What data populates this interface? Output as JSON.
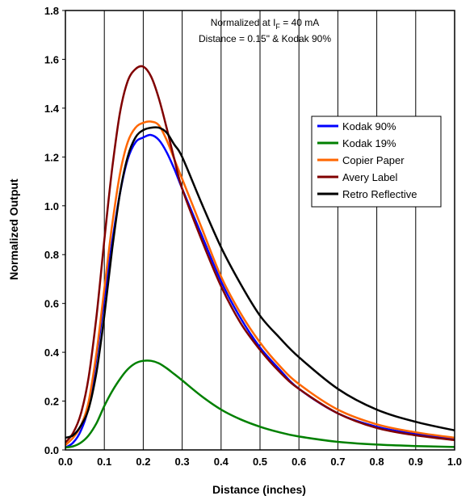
{
  "chart_data": {
    "type": "line",
    "title": "",
    "xlabel": "Distance (inches)",
    "ylabel": "Normalized Output",
    "xlim": [
      0,
      1.0
    ],
    "ylim": [
      0,
      1.8
    ],
    "xticks": [
      "0.0",
      "0.1",
      "0.2",
      "0.3",
      "0.4",
      "0.5",
      "0.6",
      "0.7",
      "0.8",
      "0.9",
      "1.0"
    ],
    "yticks": [
      "0.0",
      "0.2",
      "0.4",
      "0.6",
      "0.8",
      "1.0",
      "1.2",
      "1.4",
      "1.6",
      "1.8"
    ],
    "grid": "vertical",
    "legend_position": "right",
    "annotation": {
      "line1_prefix": "Normalized at I",
      "line1_sub": "F",
      "line1_suffix": " = 40 mA",
      "line2": "Distance = 0.15\" & Kodak 90%"
    },
    "series": [
      {
        "name": "Kodak 90%",
        "color": "#0000ff",
        "x": [
          0,
          0.02,
          0.04,
          0.06,
          0.08,
          0.1,
          0.12,
          0.14,
          0.16,
          0.18,
          0.2,
          0.22,
          0.24,
          0.26,
          0.28,
          0.3,
          0.35,
          0.4,
          0.45,
          0.5,
          0.55,
          0.6,
          0.7,
          0.8,
          0.9,
          1.0
        ],
        "y": [
          0.01,
          0.03,
          0.08,
          0.18,
          0.38,
          0.62,
          0.85,
          1.05,
          1.19,
          1.26,
          1.28,
          1.29,
          1.27,
          1.22,
          1.15,
          1.07,
          0.88,
          0.69,
          0.54,
          0.42,
          0.33,
          0.25,
          0.15,
          0.095,
          0.065,
          0.045
        ]
      },
      {
        "name": "Kodak 19%",
        "color": "#008000",
        "x": [
          0,
          0.02,
          0.04,
          0.06,
          0.08,
          0.1,
          0.12,
          0.14,
          0.16,
          0.18,
          0.2,
          0.22,
          0.24,
          0.26,
          0.28,
          0.3,
          0.35,
          0.4,
          0.45,
          0.5,
          0.55,
          0.6,
          0.7,
          0.8,
          0.9,
          1.0
        ],
        "y": [
          0.01,
          0.015,
          0.03,
          0.06,
          0.11,
          0.18,
          0.24,
          0.29,
          0.33,
          0.355,
          0.365,
          0.365,
          0.355,
          0.335,
          0.31,
          0.285,
          0.22,
          0.165,
          0.125,
          0.095,
          0.072,
          0.055,
          0.033,
          0.022,
          0.016,
          0.012
        ]
      },
      {
        "name": "Copier Paper",
        "color": "#ff6600",
        "x": [
          0,
          0.02,
          0.04,
          0.06,
          0.08,
          0.1,
          0.12,
          0.14,
          0.16,
          0.18,
          0.2,
          0.22,
          0.24,
          0.26,
          0.28,
          0.3,
          0.35,
          0.4,
          0.45,
          0.5,
          0.55,
          0.6,
          0.7,
          0.8,
          0.9,
          1.0
        ],
        "y": [
          0.02,
          0.05,
          0.1,
          0.2,
          0.4,
          0.66,
          0.92,
          1.13,
          1.26,
          1.32,
          1.34,
          1.345,
          1.33,
          1.27,
          1.19,
          1.11,
          0.91,
          0.71,
          0.56,
          0.44,
          0.345,
          0.27,
          0.165,
          0.105,
          0.072,
          0.05
        ]
      },
      {
        "name": "Avery Label",
        "color": "#800000",
        "x": [
          0,
          0.02,
          0.04,
          0.06,
          0.08,
          0.1,
          0.12,
          0.14,
          0.16,
          0.18,
          0.2,
          0.22,
          0.24,
          0.26,
          0.28,
          0.3,
          0.35,
          0.4,
          0.45,
          0.5,
          0.55,
          0.6,
          0.7,
          0.8,
          0.9,
          1.0
        ],
        "y": [
          0.03,
          0.07,
          0.15,
          0.3,
          0.55,
          0.86,
          1.15,
          1.38,
          1.51,
          1.56,
          1.57,
          1.53,
          1.44,
          1.32,
          1.19,
          1.07,
          0.86,
          0.67,
          0.52,
          0.41,
          0.32,
          0.25,
          0.15,
          0.09,
          0.06,
          0.04
        ]
      },
      {
        "name": "Retro Reflective",
        "color": "#000000",
        "x": [
          0,
          0.02,
          0.04,
          0.06,
          0.08,
          0.1,
          0.12,
          0.14,
          0.16,
          0.18,
          0.2,
          0.22,
          0.24,
          0.26,
          0.28,
          0.3,
          0.35,
          0.4,
          0.45,
          0.5,
          0.55,
          0.6,
          0.7,
          0.8,
          0.9,
          1.0
        ],
        "y": [
          0.05,
          0.06,
          0.1,
          0.17,
          0.32,
          0.55,
          0.82,
          1.05,
          1.2,
          1.28,
          1.31,
          1.32,
          1.32,
          1.3,
          1.25,
          1.2,
          1.01,
          0.83,
          0.68,
          0.55,
          0.46,
          0.38,
          0.25,
          0.165,
          0.115,
          0.08
        ]
      }
    ]
  }
}
